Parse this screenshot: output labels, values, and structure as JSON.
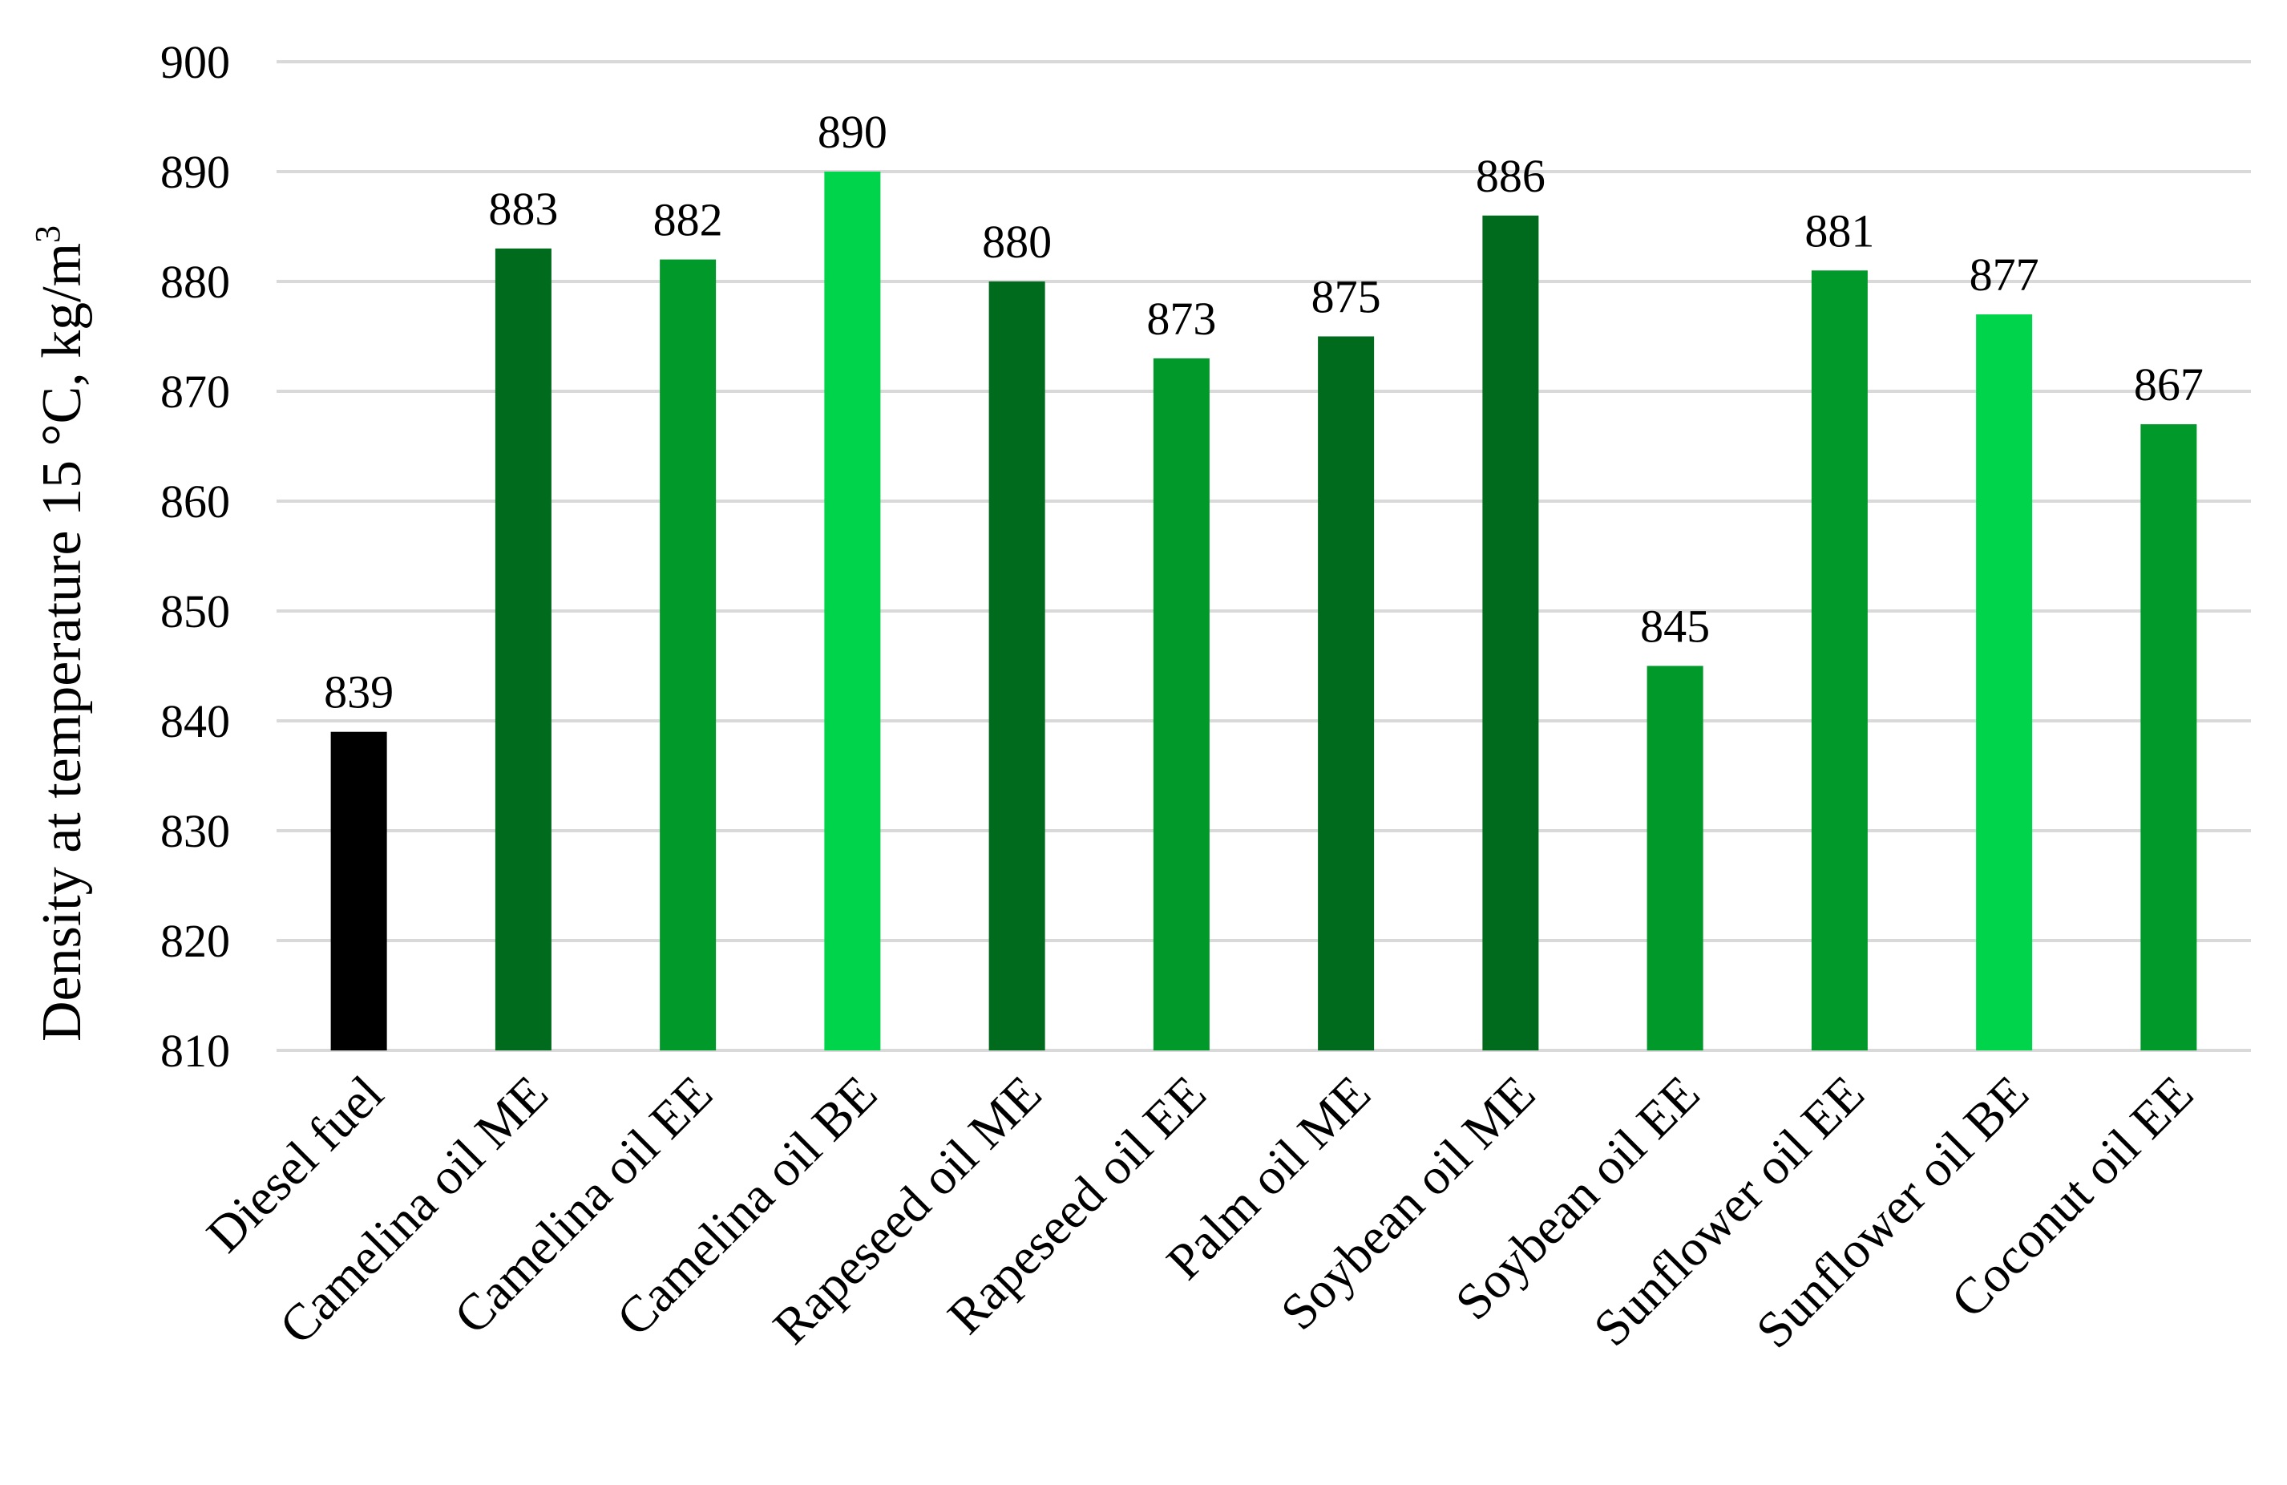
{
  "chart_data": {
    "type": "bar",
    "title": "",
    "xlabel": "",
    "ylabel": "Density at temperature 15 °C, kg/m",
    "ylabel_superscript": "3",
    "ylim": [
      810,
      900
    ],
    "yticks": [
      810,
      820,
      830,
      840,
      850,
      860,
      870,
      880,
      890,
      900
    ],
    "grid": true,
    "legend": "none",
    "categories": [
      "Diesel fuel",
      "Camelina oil ME",
      "Camelina oil EE",
      "Camelina oil BE",
      "Rapeseed oil ME",
      "Rapeseed oil EE",
      "Palm oil ME",
      "Soybean oil ME",
      "Soybean oil EE",
      "Sunflower oil EE",
      "Sunflower oil BE",
      "Coconut oil EE"
    ],
    "values": [
      839,
      883,
      882,
      890,
      880,
      873,
      875,
      886,
      845,
      881,
      877,
      867
    ],
    "colors": [
      "#000000",
      "#006b1c",
      "#00992a",
      "#00d44b",
      "#006b1c",
      "#00992a",
      "#006b1c",
      "#006b1c",
      "#00992a",
      "#00992a",
      "#00d44b",
      "#00992a"
    ]
  }
}
